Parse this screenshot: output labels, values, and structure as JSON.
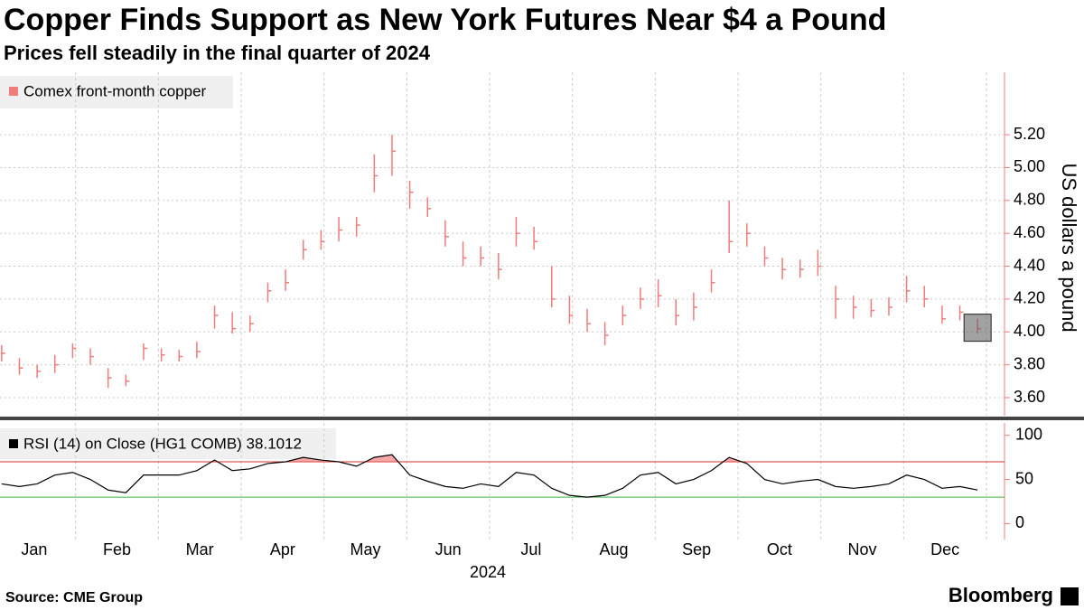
{
  "chart_data": {
    "type": "ohlc",
    "title": "Copper Finds Support as New York Futures Near $4 a Pound",
    "subtitle": "Prices fell steadily in the final quarter of 2024",
    "y_label": "US dollars a pound",
    "x_label": "2024",
    "source": "Source: CME Group",
    "brand": "Bloomberg",
    "categories": [
      "Jan",
      "Feb",
      "Mar",
      "Apr",
      "May",
      "Jun",
      "Jul",
      "Aug",
      "Sep",
      "Oct",
      "Nov",
      "Dec"
    ],
    "grid": true,
    "series": [
      {
        "name": "Comex front-month copper",
        "color": "#f07c7c",
        "high": [
          3.92,
          3.84,
          3.8,
          3.86,
          3.93,
          3.9,
          3.78,
          3.74,
          3.93,
          3.9,
          3.89,
          3.94,
          4.16,
          4.12,
          4.1,
          4.3,
          4.38,
          4.56,
          4.62,
          4.7,
          4.7,
          5.08,
          5.2,
          4.92,
          4.82,
          4.68,
          4.55,
          4.52,
          4.48,
          4.7,
          4.64,
          4.4,
          4.22,
          4.14,
          4.06,
          4.16,
          4.27,
          4.32,
          4.2,
          4.24,
          4.38,
          4.8,
          4.66,
          4.52,
          4.45,
          4.44,
          4.5,
          4.28,
          4.22,
          4.2,
          4.21,
          4.34,
          4.28,
          4.16,
          4.16,
          4.08
        ],
        "low": [
          3.82,
          3.74,
          3.72,
          3.75,
          3.84,
          3.8,
          3.66,
          3.67,
          3.83,
          3.82,
          3.82,
          3.84,
          4.02,
          3.99,
          4.0,
          4.18,
          4.25,
          4.44,
          4.5,
          4.55,
          4.58,
          4.85,
          4.95,
          4.75,
          4.7,
          4.52,
          4.4,
          4.4,
          4.32,
          4.52,
          4.5,
          4.15,
          4.05,
          4.0,
          3.92,
          4.04,
          4.14,
          4.15,
          4.04,
          4.07,
          4.24,
          4.48,
          4.52,
          4.4,
          4.32,
          4.33,
          4.34,
          4.08,
          4.08,
          4.09,
          4.1,
          4.18,
          4.15,
          4.05,
          4.07,
          3.99
        ],
        "close": [
          3.87,
          3.78,
          3.76,
          3.8,
          3.9,
          3.85,
          3.72,
          3.7,
          3.9,
          3.86,
          3.85,
          3.88,
          4.1,
          4.02,
          4.05,
          4.25,
          4.3,
          4.5,
          4.55,
          4.62,
          4.65,
          4.95,
          5.1,
          4.85,
          4.75,
          4.58,
          4.45,
          4.45,
          4.38,
          4.6,
          4.55,
          4.2,
          4.1,
          4.05,
          3.98,
          4.1,
          4.2,
          4.22,
          4.1,
          4.15,
          4.3,
          4.55,
          4.6,
          4.45,
          4.38,
          4.38,
          4.4,
          4.2,
          4.15,
          4.13,
          4.15,
          4.25,
          4.2,
          4.08,
          4.12,
          4.02
        ]
      }
    ],
    "ylim": [
      3.49,
      5.58
    ],
    "yticks": [
      {
        "value": 3.6,
        "label": "3.60"
      },
      {
        "value": 3.8,
        "label": "3.80"
      },
      {
        "value": 4,
        "label": "4.00"
      },
      {
        "value": 4.2,
        "label": "4.20"
      },
      {
        "value": 4.4,
        "label": "4.40"
      },
      {
        "value": 4.6,
        "label": "4.60"
      },
      {
        "value": 4.8,
        "label": "4.80"
      },
      {
        "value": 5,
        "label": "5.00"
      },
      {
        "value": 5.2,
        "label": "5.20"
      }
    ],
    "rsi": {
      "name": "RSI (14)  on Close (HG1 COMB) 38.1012",
      "color": "#000000",
      "values": [
        45,
        42,
        45,
        55,
        58,
        50,
        38,
        35,
        55,
        55,
        55,
        60,
        72,
        60,
        62,
        68,
        70,
        75,
        72,
        70,
        65,
        75,
        78,
        55,
        48,
        42,
        40,
        45,
        42,
        58,
        55,
        40,
        32,
        30,
        32,
        40,
        55,
        58,
        45,
        50,
        60,
        75,
        68,
        50,
        45,
        48,
        50,
        42,
        40,
        42,
        45,
        55,
        50,
        40,
        42,
        38.1012
      ],
      "ylim": [
        -18,
        114
      ],
      "yticks": [
        0,
        50,
        100
      ],
      "upper": 70,
      "upper_color": "#d9302c",
      "lower": 30,
      "lower_color": "#3cb83c"
    }
  }
}
